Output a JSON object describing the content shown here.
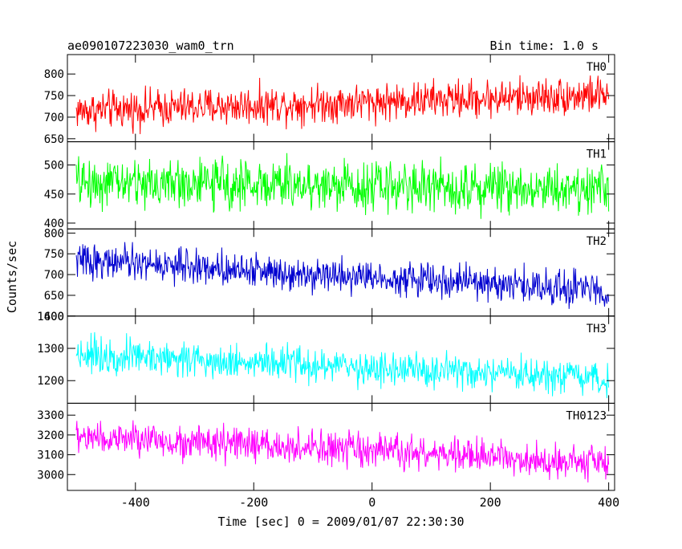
{
  "chart_data": {
    "type": "line",
    "title": "ae090107223030_wam0_trn",
    "subtitle": "Bin time: 1.0 s",
    "xlabel": "Time [sec] 0 = 2009/01/07 22:30:30",
    "ylabel": "Counts/sec",
    "xlim": [
      -515,
      410
    ],
    "xticks": [
      -400,
      -200,
      0,
      200,
      400
    ],
    "legend": "panel labels top-right",
    "grid": false,
    "panels": [
      {
        "name": "TH0",
        "color": "#ff0000",
        "ylim": [
          643,
          845
        ],
        "yticks": [
          650,
          700,
          750,
          800
        ],
        "trend_start": 715,
        "trend_end": 752,
        "noise": 28
      },
      {
        "name": "TH1",
        "color": "#00ff00",
        "ylim": [
          390,
          540
        ],
        "yticks": [
          400,
          450,
          500
        ],
        "trend_start": 470,
        "trend_end": 460,
        "noise": 27
      },
      {
        "name": "TH2",
        "color": "#0000d0",
        "ylim": [
          600,
          810
        ],
        "yticks": [
          600,
          650,
          700,
          750,
          800
        ],
        "trend_start": 735,
        "trend_end": 662,
        "noise": 26
      },
      {
        "name": "TH3",
        "color": "#00ffff",
        "ylim": [
          1130,
          1400
        ],
        "yticks": [
          1200,
          1300,
          1400
        ],
        "trend_start": 1285,
        "trend_end": 1200,
        "noise": 35
      },
      {
        "name": "TH0123",
        "color": "#ff00ff",
        "ylim": [
          2920,
          3360
        ],
        "yticks": [
          3000,
          3100,
          3200,
          3300
        ],
        "trend_start": 3190,
        "trend_end": 3060,
        "noise": 55
      }
    ]
  }
}
